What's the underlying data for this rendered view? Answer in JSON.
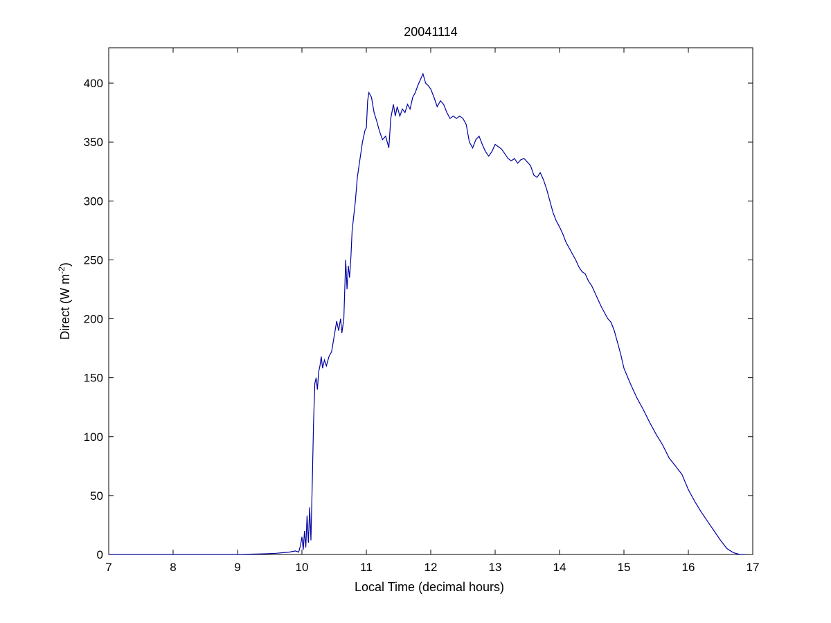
{
  "chart_data": {
    "type": "line",
    "title": "20041114",
    "xlabel": "Local Time (decimal hours)",
    "ylabel": {
      "main": "Direct (W m",
      "superscript": "-2",
      "close": ")"
    },
    "xlim": [
      7,
      17
    ],
    "ylim": [
      0,
      430
    ],
    "xticks": [
      7,
      8,
      9,
      10,
      11,
      12,
      13,
      14,
      15,
      16,
      17
    ],
    "yticks": [
      0,
      50,
      100,
      150,
      200,
      250,
      300,
      350,
      400
    ],
    "grid": false,
    "series": [
      {
        "color": "#0000a0",
        "points": [
          [
            7.0,
            0
          ],
          [
            9.0,
            0
          ],
          [
            9.4,
            0.5
          ],
          [
            9.6,
            1
          ],
          [
            9.8,
            2
          ],
          [
            9.9,
            3
          ],
          [
            9.95,
            2
          ],
          [
            9.98,
            8
          ],
          [
            10.0,
            15
          ],
          [
            10.02,
            4
          ],
          [
            10.04,
            20
          ],
          [
            10.06,
            6
          ],
          [
            10.08,
            33
          ],
          [
            10.1,
            10
          ],
          [
            10.12,
            40
          ],
          [
            10.14,
            12
          ],
          [
            10.16,
            60
          ],
          [
            10.18,
            110
          ],
          [
            10.2,
            145
          ],
          [
            10.22,
            150
          ],
          [
            10.24,
            140
          ],
          [
            10.26,
            155
          ],
          [
            10.28,
            160
          ],
          [
            10.3,
            168
          ],
          [
            10.32,
            158
          ],
          [
            10.35,
            165
          ],
          [
            10.38,
            160
          ],
          [
            10.42,
            168
          ],
          [
            10.46,
            172
          ],
          [
            10.5,
            185
          ],
          [
            10.54,
            198
          ],
          [
            10.57,
            190
          ],
          [
            10.6,
            200
          ],
          [
            10.62,
            188
          ],
          [
            10.65,
            200
          ],
          [
            10.68,
            250
          ],
          [
            10.7,
            225
          ],
          [
            10.72,
            245
          ],
          [
            10.74,
            235
          ],
          [
            10.76,
            252
          ],
          [
            10.78,
            275
          ],
          [
            10.8,
            285
          ],
          [
            10.83,
            300
          ],
          [
            10.86,
            320
          ],
          [
            10.9,
            335
          ],
          [
            10.94,
            350
          ],
          [
            10.98,
            360
          ],
          [
            11.0,
            362
          ],
          [
            11.02,
            385
          ],
          [
            11.04,
            392
          ],
          [
            11.08,
            388
          ],
          [
            11.12,
            375
          ],
          [
            11.16,
            368
          ],
          [
            11.2,
            360
          ],
          [
            11.25,
            352
          ],
          [
            11.3,
            355
          ],
          [
            11.35,
            345
          ],
          [
            11.38,
            370
          ],
          [
            11.42,
            382
          ],
          [
            11.45,
            372
          ],
          [
            11.48,
            380
          ],
          [
            11.52,
            372
          ],
          [
            11.56,
            378
          ],
          [
            11.6,
            375
          ],
          [
            11.64,
            382
          ],
          [
            11.68,
            378
          ],
          [
            11.72,
            388
          ],
          [
            11.76,
            392
          ],
          [
            11.8,
            398
          ],
          [
            11.84,
            403
          ],
          [
            11.88,
            408
          ],
          [
            11.92,
            400
          ],
          [
            11.96,
            398
          ],
          [
            12.0,
            395
          ],
          [
            12.05,
            388
          ],
          [
            12.1,
            380
          ],
          [
            12.15,
            385
          ],
          [
            12.2,
            382
          ],
          [
            12.25,
            375
          ],
          [
            12.3,
            370
          ],
          [
            12.35,
            372
          ],
          [
            12.4,
            370
          ],
          [
            12.45,
            372
          ],
          [
            12.5,
            370
          ],
          [
            12.55,
            365
          ],
          [
            12.6,
            350
          ],
          [
            12.65,
            345
          ],
          [
            12.7,
            352
          ],
          [
            12.75,
            355
          ],
          [
            12.8,
            348
          ],
          [
            12.85,
            342
          ],
          [
            12.9,
            338
          ],
          [
            12.95,
            342
          ],
          [
            13.0,
            348
          ],
          [
            13.05,
            346
          ],
          [
            13.1,
            344
          ],
          [
            13.15,
            340
          ],
          [
            13.2,
            336
          ],
          [
            13.25,
            334
          ],
          [
            13.3,
            336
          ],
          [
            13.35,
            332
          ],
          [
            13.4,
            335
          ],
          [
            13.45,
            336
          ],
          [
            13.5,
            333
          ],
          [
            13.55,
            330
          ],
          [
            13.6,
            322
          ],
          [
            13.65,
            320
          ],
          [
            13.7,
            324
          ],
          [
            13.75,
            318
          ],
          [
            13.8,
            310
          ],
          [
            13.85,
            300
          ],
          [
            13.9,
            290
          ],
          [
            13.95,
            283
          ],
          [
            14.0,
            278
          ],
          [
            14.05,
            272
          ],
          [
            14.1,
            265
          ],
          [
            14.15,
            260
          ],
          [
            14.2,
            255
          ],
          [
            14.25,
            250
          ],
          [
            14.3,
            244
          ],
          [
            14.35,
            240
          ],
          [
            14.4,
            238
          ],
          [
            14.45,
            232
          ],
          [
            14.5,
            228
          ],
          [
            14.55,
            222
          ],
          [
            14.6,
            216
          ],
          [
            14.65,
            210
          ],
          [
            14.7,
            205
          ],
          [
            14.75,
            200
          ],
          [
            14.8,
            197
          ],
          [
            14.85,
            190
          ],
          [
            14.9,
            180
          ],
          [
            14.95,
            170
          ],
          [
            15.0,
            158
          ],
          [
            15.1,
            145
          ],
          [
            15.2,
            133
          ],
          [
            15.3,
            123
          ],
          [
            15.4,
            112
          ],
          [
            15.5,
            102
          ],
          [
            15.6,
            93
          ],
          [
            15.7,
            82
          ],
          [
            15.8,
            75
          ],
          [
            15.9,
            68
          ],
          [
            16.0,
            55
          ],
          [
            16.1,
            45
          ],
          [
            16.2,
            36
          ],
          [
            16.3,
            28
          ],
          [
            16.4,
            20
          ],
          [
            16.5,
            12
          ],
          [
            16.6,
            5
          ],
          [
            16.7,
            1.5
          ],
          [
            16.8,
            0
          ],
          [
            16.88,
            0
          ]
        ]
      }
    ]
  }
}
